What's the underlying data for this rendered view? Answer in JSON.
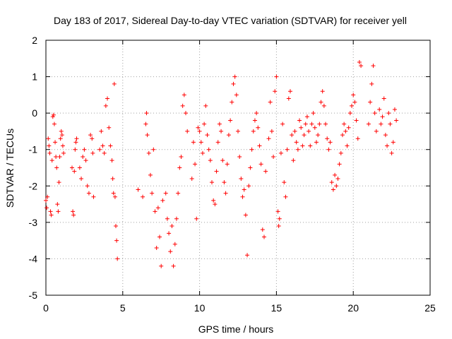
{
  "chart_data": {
    "type": "scatter",
    "title": "Day 183 of 2017, Sidereal Day-to-day VTEC variation (SDTVAR) for receiver yell",
    "xlabel": "GPS time / hours",
    "ylabel": "SDTVAR / TECUs",
    "xlim": [
      0,
      25
    ],
    "ylim": [
      -5,
      2
    ],
    "xticks": [
      0,
      5,
      10,
      15,
      20,
      25
    ],
    "yticks": [
      -5,
      -4,
      -3,
      -2,
      -1,
      0,
      1,
      2
    ],
    "xtick_labels": [
      "0",
      "5",
      "10",
      "15",
      "20",
      "25"
    ],
    "ytick_labels": [
      "-5",
      "-4",
      "-3",
      "-2",
      "-1",
      "0",
      "1",
      "2"
    ],
    "grid": true,
    "marker": "+",
    "color": "#ff0000",
    "series": [
      {
        "name": "SDTVAR",
        "points": [
          [
            0.0,
            -2.4
          ],
          [
            0.05,
            -2.6
          ],
          [
            0.1,
            -2.3
          ],
          [
            0.15,
            -0.7
          ],
          [
            0.2,
            -0.9
          ],
          [
            0.25,
            -1.1
          ],
          [
            0.3,
            -2.7
          ],
          [
            0.35,
            -2.8
          ],
          [
            0.4,
            -1.3
          ],
          [
            0.45,
            -0.1
          ],
          [
            0.5,
            -0.05
          ],
          [
            0.55,
            -0.3
          ],
          [
            0.6,
            -0.8
          ],
          [
            0.65,
            -1.2
          ],
          [
            0.7,
            -1.5
          ],
          [
            0.75,
            -2.5
          ],
          [
            0.8,
            -2.7
          ],
          [
            0.85,
            -1.9
          ],
          [
            0.9,
            -1.2
          ],
          [
            0.95,
            -0.7
          ],
          [
            1.0,
            -0.5
          ],
          [
            1.05,
            -0.6
          ],
          [
            1.1,
            -0.9
          ],
          [
            1.15,
            -1.1
          ],
          [
            1.7,
            -1.5
          ],
          [
            1.75,
            -2.7
          ],
          [
            1.8,
            -2.8
          ],
          [
            1.85,
            -1.6
          ],
          [
            1.9,
            -1.0
          ],
          [
            1.95,
            -0.8
          ],
          [
            2.0,
            -0.7
          ],
          [
            2.2,
            -1.5
          ],
          [
            2.3,
            -1.8
          ],
          [
            2.4,
            -1.2
          ],
          [
            2.5,
            -1.0
          ],
          [
            2.6,
            -1.3
          ],
          [
            2.7,
            -2.0
          ],
          [
            2.8,
            -2.2
          ],
          [
            2.9,
            -0.6
          ],
          [
            3.0,
            -0.7
          ],
          [
            3.05,
            -1.1
          ],
          [
            3.1,
            -2.3
          ],
          [
            3.5,
            -1.0
          ],
          [
            3.6,
            -0.5
          ],
          [
            3.7,
            -0.9
          ],
          [
            3.8,
            -1.1
          ],
          [
            3.9,
            0.2
          ],
          [
            4.0,
            0.4
          ],
          [
            4.1,
            -0.4
          ],
          [
            4.2,
            -0.9
          ],
          [
            4.3,
            -1.3
          ],
          [
            4.35,
            -1.8
          ],
          [
            4.4,
            -2.2
          ],
          [
            4.45,
            0.8
          ],
          [
            4.5,
            -2.3
          ],
          [
            4.55,
            -3.1
          ],
          [
            4.6,
            -3.5
          ],
          [
            4.65,
            -4.0
          ],
          [
            6.0,
            -2.1
          ],
          [
            6.3,
            -2.3
          ],
          [
            6.5,
            -0.3
          ],
          [
            6.55,
            0.0
          ],
          [
            6.6,
            -0.6
          ],
          [
            6.7,
            -1.1
          ],
          [
            6.8,
            -1.7
          ],
          [
            6.9,
            -2.2
          ],
          [
            7.0,
            -1.0
          ],
          [
            7.1,
            -2.7
          ],
          [
            7.2,
            -3.7
          ],
          [
            7.3,
            -2.6
          ],
          [
            7.4,
            -3.4
          ],
          [
            7.5,
            -4.2
          ],
          [
            7.6,
            -2.4
          ],
          [
            7.8,
            -2.2
          ],
          [
            7.9,
            -2.9
          ],
          [
            8.0,
            -3.3
          ],
          [
            8.1,
            -3.8
          ],
          [
            8.2,
            -3.1
          ],
          [
            8.3,
            -4.2
          ],
          [
            8.4,
            -3.6
          ],
          [
            8.5,
            -2.9
          ],
          [
            8.6,
            -2.2
          ],
          [
            8.7,
            -1.5
          ],
          [
            8.8,
            -1.2
          ],
          [
            8.9,
            0.2
          ],
          [
            9.0,
            0.5
          ],
          [
            9.1,
            0.0
          ],
          [
            9.2,
            -0.5
          ],
          [
            9.5,
            -1.8
          ],
          [
            9.6,
            -0.8
          ],
          [
            9.7,
            -1.4
          ],
          [
            9.8,
            -2.9
          ],
          [
            9.9,
            -0.4
          ],
          [
            10.0,
            -0.5
          ],
          [
            10.1,
            -0.8
          ],
          [
            10.2,
            -1.1
          ],
          [
            10.3,
            -0.3
          ],
          [
            10.4,
            0.2
          ],
          [
            10.5,
            -0.6
          ],
          [
            10.6,
            -1.0
          ],
          [
            10.7,
            -1.3
          ],
          [
            10.8,
            -1.9
          ],
          [
            10.9,
            -2.4
          ],
          [
            11.0,
            -2.5
          ],
          [
            11.1,
            -1.6
          ],
          [
            11.2,
            -0.8
          ],
          [
            11.3,
            -0.3
          ],
          [
            11.4,
            -0.5
          ],
          [
            11.5,
            -1.3
          ],
          [
            11.6,
            -1.9
          ],
          [
            11.7,
            -2.2
          ],
          [
            11.8,
            -1.4
          ],
          [
            11.9,
            -0.6
          ],
          [
            12.0,
            -0.2
          ],
          [
            12.1,
            0.3
          ],
          [
            12.2,
            0.8
          ],
          [
            12.3,
            1.0
          ],
          [
            12.4,
            0.5
          ],
          [
            12.5,
            -0.5
          ],
          [
            12.6,
            -1.2
          ],
          [
            12.7,
            -1.8
          ],
          [
            12.8,
            -2.3
          ],
          [
            12.9,
            -2.1
          ],
          [
            13.0,
            -2.8
          ],
          [
            13.1,
            -3.9
          ],
          [
            13.2,
            -2.0
          ],
          [
            13.3,
            -1.5
          ],
          [
            13.4,
            -1.0
          ],
          [
            13.5,
            -0.5
          ],
          [
            13.6,
            -0.2
          ],
          [
            13.7,
            0.0
          ],
          [
            13.8,
            -0.4
          ],
          [
            13.9,
            -0.9
          ],
          [
            14.0,
            -1.4
          ],
          [
            14.1,
            -3.2
          ],
          [
            14.2,
            -3.4
          ],
          [
            14.3,
            -1.6
          ],
          [
            14.5,
            -0.7
          ],
          [
            14.6,
            0.3
          ],
          [
            14.7,
            -0.5
          ],
          [
            14.8,
            -1.2
          ],
          [
            14.9,
            0.6
          ],
          [
            15.0,
            1.0
          ],
          [
            15.1,
            -2.7
          ],
          [
            15.15,
            -3.1
          ],
          [
            15.2,
            -2.9
          ],
          [
            15.3,
            -1.1
          ],
          [
            15.4,
            -0.3
          ],
          [
            15.5,
            -1.9
          ],
          [
            15.6,
            -2.3
          ],
          [
            15.7,
            -1.0
          ],
          [
            15.8,
            0.4
          ],
          [
            15.9,
            0.6
          ],
          [
            16.0,
            -0.6
          ],
          [
            16.1,
            -1.3
          ],
          [
            16.2,
            -0.5
          ],
          [
            16.3,
            -0.8
          ],
          [
            16.4,
            -1.0
          ],
          [
            16.5,
            -0.2
          ],
          [
            16.6,
            -0.4
          ],
          [
            16.7,
            -0.9
          ],
          [
            16.8,
            -0.6
          ],
          [
            16.9,
            -0.3
          ],
          [
            17.0,
            -0.1
          ],
          [
            17.1,
            -0.5
          ],
          [
            17.2,
            -0.9
          ],
          [
            17.3,
            -0.3
          ],
          [
            17.4,
            0.0
          ],
          [
            17.5,
            -0.4
          ],
          [
            17.6,
            -0.8
          ],
          [
            17.7,
            -0.6
          ],
          [
            17.8,
            -0.3
          ],
          [
            17.9,
            0.3
          ],
          [
            18.0,
            0.6
          ],
          [
            18.1,
            0.2
          ],
          [
            18.2,
            -0.3
          ],
          [
            18.3,
            -0.7
          ],
          [
            18.4,
            -1.0
          ],
          [
            18.5,
            -0.8
          ],
          [
            18.6,
            -1.9
          ],
          [
            18.7,
            -2.1
          ],
          [
            18.8,
            -1.7
          ],
          [
            18.9,
            -2.0
          ],
          [
            19.0,
            -1.8
          ],
          [
            19.1,
            -1.4
          ],
          [
            19.2,
            -1.1
          ],
          [
            19.3,
            -0.6
          ],
          [
            19.4,
            -0.3
          ],
          [
            19.5,
            -0.5
          ],
          [
            19.6,
            -0.9
          ],
          [
            19.7,
            -0.4
          ],
          [
            19.8,
            0.0
          ],
          [
            19.9,
            0.2
          ],
          [
            20.0,
            0.5
          ],
          [
            20.1,
            0.3
          ],
          [
            20.2,
            -0.2
          ],
          [
            20.3,
            -0.7
          ],
          [
            20.4,
            1.4
          ],
          [
            20.5,
            1.3
          ],
          [
            21.0,
            -0.3
          ],
          [
            21.1,
            0.3
          ],
          [
            21.2,
            0.8
          ],
          [
            21.3,
            1.3
          ],
          [
            21.4,
            0.0
          ],
          [
            21.5,
            -0.5
          ],
          [
            21.7,
            0.1
          ],
          [
            21.8,
            -0.3
          ],
          [
            21.9,
            -0.1
          ],
          [
            22.0,
            0.4
          ],
          [
            22.1,
            -0.6
          ],
          [
            22.2,
            -0.9
          ],
          [
            22.3,
            0.0
          ],
          [
            22.4,
            -0.3
          ],
          [
            22.5,
            -1.1
          ],
          [
            22.6,
            -0.8
          ],
          [
            22.7,
            0.1
          ],
          [
            22.8,
            -0.2
          ]
        ]
      }
    ]
  }
}
